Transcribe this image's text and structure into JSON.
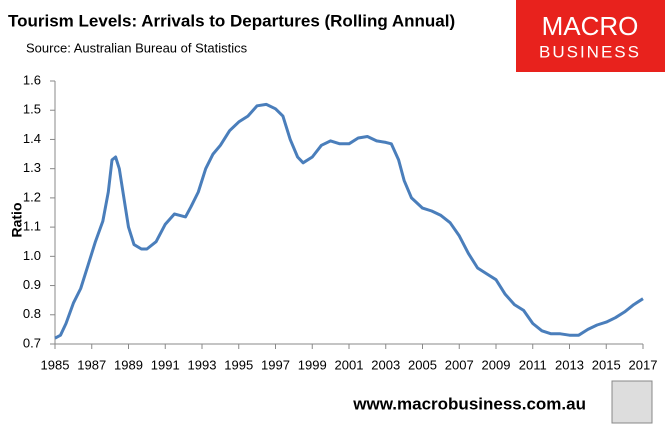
{
  "chart_data": {
    "type": "line",
    "title": "Tourism Levels: Arrivals to Departures (Rolling Annual)",
    "subtitle": "Source: Australian Bureau of Statistics",
    "y_label": "Ratio",
    "logo": [
      "MACRO",
      "BUSINESS"
    ],
    "footer": "www.macrobusiness.com.au",
    "x": [
      1985.0,
      1985.3,
      1985.6,
      1986.0,
      1986.4,
      1986.8,
      1987.2,
      1987.6,
      1987.9,
      1988.1,
      1988.3,
      1988.5,
      1988.8,
      1989.0,
      1989.3,
      1989.7,
      1990.0,
      1990.5,
      1991.0,
      1991.5,
      1991.8,
      1992.1,
      1992.4,
      1992.8,
      1993.2,
      1993.6,
      1994.0,
      1994.5,
      1995.0,
      1995.5,
      1996.0,
      1996.5,
      1997.0,
      1997.4,
      1997.8,
      1998.2,
      1998.5,
      1999.0,
      1999.5,
      2000.0,
      2000.5,
      2001.0,
      2001.5,
      2002.0,
      2002.5,
      2003.0,
      2003.3,
      2003.7,
      2004.0,
      2004.4,
      2005.0,
      2005.5,
      2006.0,
      2006.5,
      2007.0,
      2007.5,
      2008.0,
      2008.5,
      2009.0,
      2009.5,
      2010.0,
      2010.5,
      2011.0,
      2011.5,
      2012.0,
      2012.5,
      2013.0,
      2013.5,
      2014.0,
      2014.5,
      2015.0,
      2015.5,
      2016.0,
      2016.5,
      2017.0
    ],
    "series": [
      {
        "name": "Arrivals to Departures",
        "color": "#4a7ebb",
        "values": [
          0.72,
          0.73,
          0.77,
          0.84,
          0.89,
          0.97,
          1.05,
          1.12,
          1.22,
          1.33,
          1.34,
          1.3,
          1.18,
          1.1,
          1.04,
          1.025,
          1.025,
          1.05,
          1.11,
          1.145,
          1.14,
          1.135,
          1.17,
          1.22,
          1.3,
          1.35,
          1.38,
          1.43,
          1.46,
          1.48,
          1.515,
          1.52,
          1.505,
          1.48,
          1.4,
          1.34,
          1.32,
          1.34,
          1.38,
          1.395,
          1.385,
          1.385,
          1.405,
          1.41,
          1.395,
          1.39,
          1.385,
          1.33,
          1.26,
          1.2,
          1.165,
          1.155,
          1.14,
          1.115,
          1.07,
          1.01,
          0.96,
          0.94,
          0.92,
          0.87,
          0.835,
          0.815,
          0.77,
          0.745,
          0.735,
          0.735,
          0.73,
          0.73,
          0.75,
          0.765,
          0.775,
          0.79,
          0.81,
          0.835,
          0.855
        ]
      }
    ],
    "xlim": [
      1985,
      2017
    ],
    "xticks": [
      1985,
      1987,
      1989,
      1991,
      1993,
      1995,
      1997,
      1999,
      2001,
      2003,
      2005,
      2007,
      2009,
      2011,
      2013,
      2015,
      2017
    ],
    "ylim": [
      0.7,
      1.6
    ],
    "yticks": [
      0.7,
      0.8,
      0.9,
      {
        "value": 1,
        "label": "1.0"
      },
      1.1,
      1.2,
      1.3,
      1.4,
      1.5,
      1.6
    ]
  }
}
